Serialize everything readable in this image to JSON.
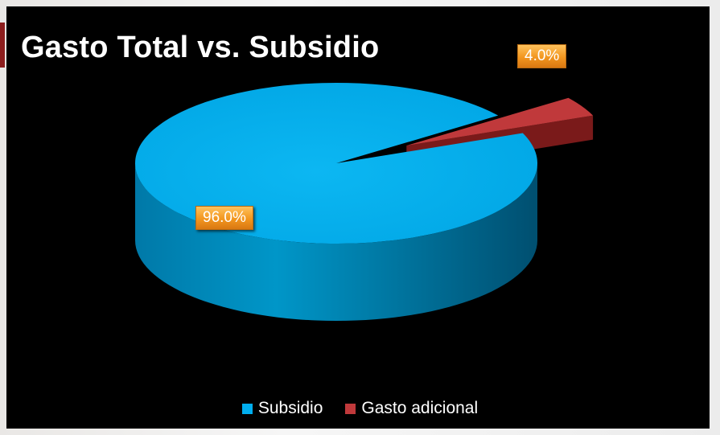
{
  "chart_data": {
    "type": "pie",
    "title": "Gasto Total vs. Subsidio",
    "categories": [
      "Subsidio",
      "Gasto adicional"
    ],
    "values": [
      96.0,
      4.0
    ],
    "data_labels": [
      "96.0%",
      "4.0%"
    ],
    "colors": [
      "#00aeef",
      "#c0393b"
    ],
    "style": "3d-exploded",
    "legend_position": "bottom"
  }
}
